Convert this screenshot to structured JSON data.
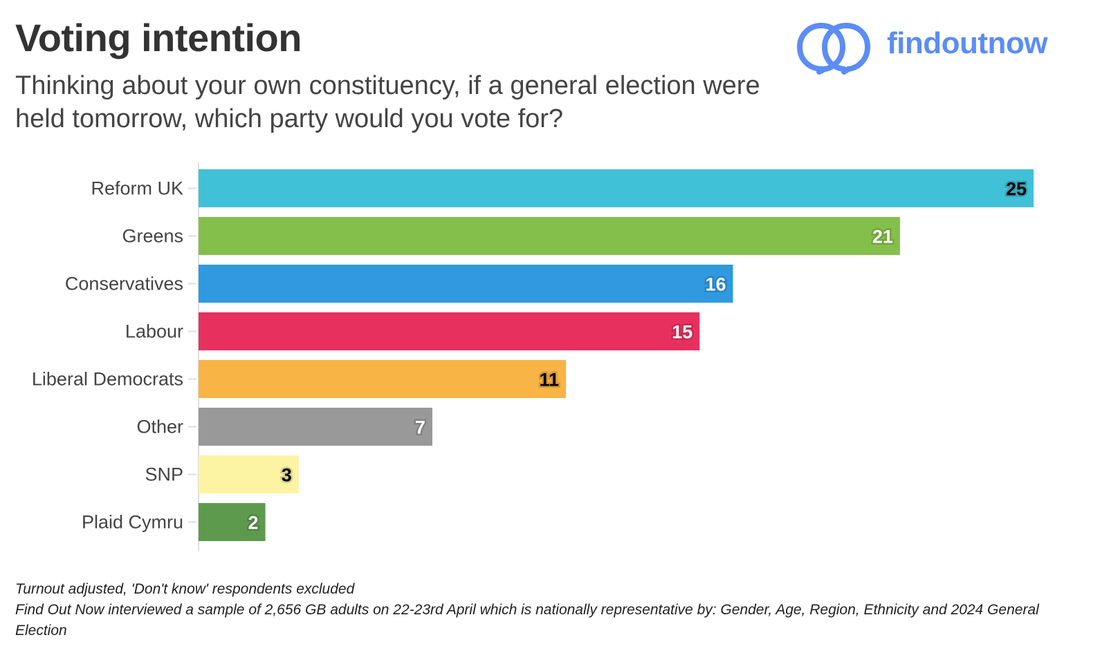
{
  "header": {
    "title": "Voting intention",
    "subtitle": "Thinking about your own constituency, if a general election were held tomorrow, which party would you vote for?"
  },
  "logo": {
    "text": "findoutnow",
    "color": "#5b8cf7"
  },
  "chart_data": {
    "type": "bar",
    "orientation": "horizontal",
    "categories": [
      "Reform UK",
      "Greens",
      "Conservatives",
      "Labour",
      "Liberal Democrats",
      "Other",
      "SNP",
      "Plaid Cymru"
    ],
    "values": [
      25,
      21,
      16,
      15,
      11,
      7,
      3,
      2
    ],
    "colors": [
      "#41c1d8",
      "#85bf4b",
      "#2f9ae0",
      "#e8305e",
      "#f8b445",
      "#999999",
      "#fdf4a3",
      "#5e9a4e"
    ],
    "label_colors": [
      "#000000",
      "#ffffff",
      "#ffffff",
      "#ffffff",
      "#000000",
      "#ffffff",
      "#000000",
      "#ffffff"
    ],
    "xlim": [
      0,
      25
    ],
    "grid": false,
    "data_labels": true
  },
  "notes": [
    "Turnout adjusted, 'Don't know' respondents excluded",
    "Find Out Now interviewed a sample of 2,656 GB adults on 22-23rd April which is nationally representative by: Gender, Age, Region, Ethnicity and 2024 General Election"
  ]
}
